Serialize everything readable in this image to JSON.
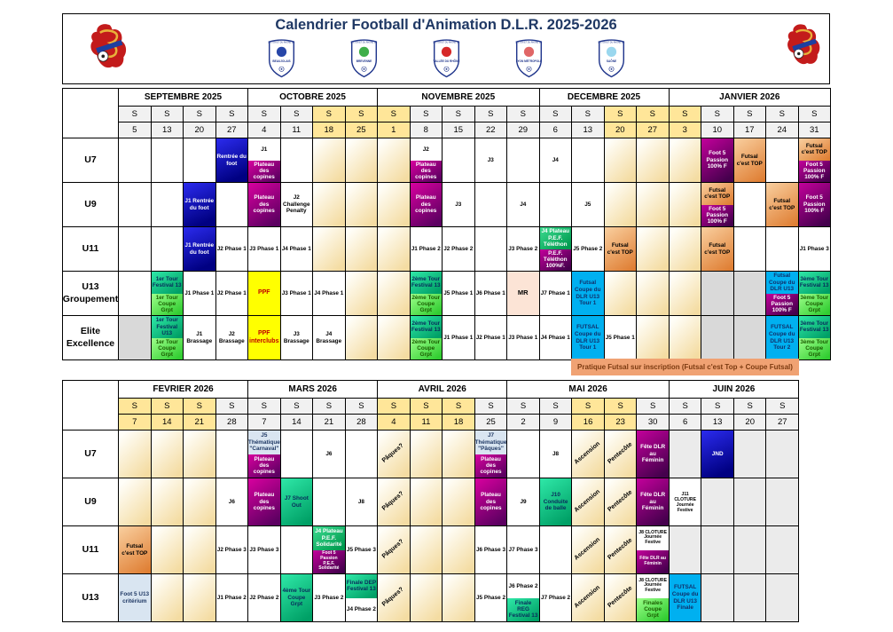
{
  "header": {
    "title": "Calendrier Football d'Animation D.L.R. 2025-2026",
    "org": "DISTRICT DE LYON ET DU RHONE DE FOOTBALL",
    "badges": [
      {
        "name": "BEAUJOLAIS",
        "accent": "#2746a8"
      },
      {
        "name": "BREVENNE",
        "accent": "#3fae49"
      },
      {
        "name": "VALLÉE DU RHÔNE",
        "accent": "#d62828"
      },
      {
        "name": "LYON MÉTROPOLE",
        "accent": "#e06666"
      },
      {
        "name": "SAÔNE",
        "accent": "#9ad7ee"
      }
    ]
  },
  "note": "Pratique Futsal sur inscription (Futsal c'est Top + Coupe Futsal)",
  "tables": [
    {
      "day": "S",
      "months": [
        [
          "SEPTEMBRE 2025",
          4
        ],
        [
          "OCTOBRE 2025",
          4
        ],
        [
          "NOVEMBRE 2025",
          5
        ],
        [
          "DECEMBRE 2025",
          4
        ],
        [
          "JANVIER 2026",
          5
        ]
      ],
      "dates": [
        "5",
        "13",
        "20",
        "27",
        "4",
        "11",
        "18",
        "25",
        "1",
        "8",
        "15",
        "22",
        "29",
        "6",
        "13",
        "20",
        "27",
        "3",
        "10",
        "17",
        "24",
        "31"
      ],
      "hl": [
        6,
        7,
        8,
        15,
        16,
        17
      ],
      "rows": [
        {
          "label": "U7",
          "cells": [
            null,
            null,
            null,
            {
              "t": "Rentrée du foot",
              "c": "blue"
            },
            {
              "sp": [
                {
                  "t": "J1",
                  "c": "wht"
                },
                {
                  "t": "Plateau des copines",
                  "c": "magenta"
                }
              ]
            },
            null,
            {
              "c": "vac"
            },
            {
              "c": "vac"
            },
            {
              "c": "vac"
            },
            {
              "sp": [
                {
                  "t": "J2",
                  "c": "wht"
                },
                {
                  "t": "Plateau des copines",
                  "c": "magenta"
                }
              ]
            },
            null,
            {
              "t": "J3",
              "c": "wht"
            },
            null,
            {
              "t": "J4",
              "c": "wht"
            },
            null,
            {
              "c": "vac"
            },
            {
              "c": "vac"
            },
            {
              "c": "vac"
            },
            {
              "t": "Foot 5 Passion 100% F",
              "c": "purple"
            },
            {
              "t": "Futsal c'est TOP",
              "c": "orange"
            },
            null,
            {
              "sp": [
                {
                  "t": "Futsal c'est TOP",
                  "c": "orange"
                },
                {
                  "t": "Foot 5 Passion 100% F",
                  "c": "purple"
                }
              ]
            }
          ]
        },
        {
          "label": "U9",
          "cells": [
            null,
            null,
            {
              "t": "J1 Rentrée du foot",
              "c": "blue"
            },
            null,
            {
              "t": "Plateau des copines",
              "c": "magenta"
            },
            {
              "t": "J2 Challenge Penalty",
              "c": "wht"
            },
            {
              "c": "vac"
            },
            {
              "c": "vac"
            },
            {
              "c": "vac"
            },
            {
              "t": "Plateau des copines",
              "c": "magenta"
            },
            {
              "t": "J3",
              "c": "wht"
            },
            null,
            {
              "t": "J4",
              "c": "wht"
            },
            null,
            {
              "t": "J5",
              "c": "wht"
            },
            {
              "c": "vac"
            },
            {
              "c": "vac"
            },
            {
              "c": "vac"
            },
            {
              "sp": [
                {
                  "t": "Futsal c'est TOP",
                  "c": "orange"
                },
                {
                  "t": "Foot 5 Passion 100% F",
                  "c": "purple"
                }
              ]
            },
            null,
            {
              "t": "Futsal c'est TOP",
              "c": "orange"
            },
            {
              "t": "Foot 5 Passion 100% F",
              "c": "purple"
            }
          ]
        },
        {
          "label": "U11",
          "cells": [
            null,
            null,
            {
              "t": "J1 Rentrée du foot",
              "c": "blue"
            },
            {
              "t": "J2 Phase 1",
              "c": "wht"
            },
            {
              "t": "J3 Phase 1",
              "c": "wht"
            },
            {
              "t": "J4 Phase 1",
              "c": "wht"
            },
            {
              "c": "vac"
            },
            {
              "c": "vac"
            },
            {
              "c": "vac"
            },
            {
              "t": "J1 Phase 2",
              "c": "wht"
            },
            {
              "t": "J2 Phase 2",
              "c": "wht"
            },
            null,
            {
              "t": "J3 Phase 2",
              "c": "wht"
            },
            {
              "sp": [
                {
                  "t": "J4 Plateau P.E.F. Téléthon",
                  "c": "greenW"
                },
                {
                  "t": "P.E.F. Téléthon 100%F.",
                  "c": "purple"
                }
              ]
            },
            {
              "t": "J5 Phase 2",
              "c": "wht"
            },
            {
              "t": "Futsal c'est TOP",
              "c": "orange"
            },
            {
              "c": "vac"
            },
            {
              "c": "vac"
            },
            {
              "t": "Futsal c'est TOP",
              "c": "orange"
            },
            null,
            null,
            {
              "t": "J1 Phase 3",
              "c": "wht"
            }
          ]
        },
        {
          "label": "U13\nGroupement",
          "cells": [
            null,
            {
              "sp": [
                {
                  "t": "1er Tour Festival 13",
                  "c": "teal"
                },
                {
                  "t": "1er Tour Coupe Grpt",
                  "c": "green"
                }
              ]
            },
            {
              "t": "J1 Phase 1",
              "c": "wht"
            },
            {
              "t": "J2 Phase 1",
              "c": "wht"
            },
            {
              "t": "PPF",
              "c": "yellow"
            },
            {
              "t": "J3 Phase 1",
              "c": "wht"
            },
            {
              "t": "J4 Phase 1",
              "c": "wht"
            },
            {
              "c": "vac"
            },
            {
              "c": "vac"
            },
            {
              "sp": [
                {
                  "t": "2ème Tour Festival 13",
                  "c": "teal"
                },
                {
                  "t": "2ème Tour Coupe Grpt",
                  "c": "green"
                }
              ]
            },
            {
              "t": "J5 Phase 1",
              "c": "wht"
            },
            {
              "t": "J6 Phase 1",
              "c": "wht"
            },
            {
              "t": "MR",
              "c": "peach"
            },
            {
              "t": "J7 Phase 1",
              "c": "wht"
            },
            {
              "t": "Futsal Coupe du DLR U13 Tour 1",
              "c": "cyan"
            },
            {
              "c": "vac"
            },
            {
              "c": "vac"
            },
            {
              "c": "vac"
            },
            {
              "c": "gray"
            },
            {
              "c": "gray"
            },
            {
              "sp": [
                {
                  "t": "Futsal Coupe du DLR U13",
                  "c": "cyan"
                },
                {
                  "t": "Foot 5 Passion 100% F",
                  "c": "purple"
                }
              ]
            },
            {
              "sp": [
                {
                  "t": "3ème Tour Festival 13",
                  "c": "teal"
                },
                {
                  "t": "3ème Tour Coupe Grpt",
                  "c": "green"
                }
              ]
            }
          ]
        },
        {
          "label": "Elite\nExcellence",
          "cells": [
            {
              "c": "gray"
            },
            {
              "sp": [
                {
                  "t": "1er Tour Festival U13",
                  "c": "teal"
                },
                {
                  "t": "1er Tour Coupe Grpt",
                  "c": "green"
                }
              ]
            },
            {
              "t": "J1 Brassage",
              "c": "wht"
            },
            {
              "t": "J2 Brassage",
              "c": "wht"
            },
            {
              "t": "PPF interclubs",
              "c": "yellow"
            },
            {
              "t": "J3 Brassage",
              "c": "wht"
            },
            {
              "t": "J4 Brassage",
              "c": "wht"
            },
            {
              "c": "vac"
            },
            {
              "c": "vac"
            },
            {
              "sp": [
                {
                  "t": "2ème Tour Festival 13",
                  "c": "teal"
                },
                {
                  "t": "2ème Tour Coupe Grpt",
                  "c": "green"
                }
              ]
            },
            {
              "t": "J1 Phase 1",
              "c": "wht"
            },
            {
              "t": "J2 Phase 1",
              "c": "wht"
            },
            {
              "t": "J3 Phase 1",
              "c": "wht"
            },
            {
              "t": "J4 Phase 1",
              "c": "wht"
            },
            {
              "t": "FUTSAL Coupe du DLR U13 Tour 1",
              "c": "cyan"
            },
            {
              "t": "J5 Phase 1",
              "c": "wht"
            },
            {
              "c": "vac"
            },
            {
              "c": "vac"
            },
            {
              "c": "gray"
            },
            {
              "c": "gray"
            },
            {
              "t": "FUTSAL Coupe du DLR U13 Tour 2",
              "c": "cyan"
            },
            {
              "sp": [
                {
                  "t": "3ème Tour Festival 13",
                  "c": "teal"
                },
                {
                  "t": "3ème Tour Coupe Grpt",
                  "c": "green"
                }
              ]
            }
          ]
        }
      ]
    },
    {
      "day": "S",
      "months": [
        [
          "FEVRIER 2026",
          4
        ],
        [
          "MARS 2026",
          4
        ],
        [
          "AVRIL 2026",
          4
        ],
        [
          "MAI 2026",
          5
        ],
        [
          "JUIN 2026",
          4
        ]
      ],
      "dates": [
        "7",
        "14",
        "21",
        "28",
        "7",
        "14",
        "21",
        "28",
        "4",
        "11",
        "18",
        "25",
        "2",
        "9",
        "16",
        "23",
        "30",
        "6",
        "13",
        "20",
        "27"
      ],
      "hl": [
        0,
        1,
        2,
        8,
        9,
        10,
        14,
        15
      ],
      "rows": [
        {
          "label": "U7",
          "cells": [
            {
              "c": "vac"
            },
            {
              "c": "vac"
            },
            {
              "c": "vac"
            },
            null,
            {
              "sp": [
                {
                  "t": "J5 Thématique \"Carnaval\"",
                  "c": "lblue"
                },
                {
                  "t": "Plateau des copines",
                  "c": "magenta"
                }
              ]
            },
            null,
            {
              "t": "J6",
              "c": "wht"
            },
            null,
            {
              "d": "Pâques?"
            },
            {
              "c": "vac"
            },
            {
              "c": "vac"
            },
            {
              "sp": [
                {
                  "t": "J7 Thématique \"Pâques\"",
                  "c": "lblue"
                },
                {
                  "t": "Plateau des copines",
                  "c": "magenta"
                }
              ]
            },
            null,
            {
              "t": "J8",
              "c": "wht"
            },
            {
              "d": "Ascension"
            },
            {
              "d": "Pentecôte"
            },
            {
              "t": "Fête DLR au Féminin",
              "c": "purple"
            },
            {
              "c": "lgray"
            },
            {
              "t": "JND",
              "c": "blue"
            },
            {
              "c": "lgray"
            },
            {
              "c": "lgray"
            }
          ]
        },
        {
          "label": "U9",
          "cells": [
            {
              "c": "vac"
            },
            {
              "c": "vac"
            },
            {
              "c": "vac"
            },
            {
              "t": "J6",
              "c": "wht"
            },
            {
              "t": "Plateau des copines",
              "c": "magenta"
            },
            {
              "t": "J7 Shoot Out",
              "c": "teal"
            },
            null,
            {
              "t": "J8",
              "c": "wht"
            },
            {
              "d": "Pâques?"
            },
            {
              "c": "vac"
            },
            {
              "c": "vac"
            },
            {
              "t": "Plateau des copines",
              "c": "magenta"
            },
            {
              "t": "J9",
              "c": "wht"
            },
            {
              "t": "J10 Conduite de balle",
              "c": "teal"
            },
            {
              "d": "Ascension"
            },
            {
              "d": "Pentecôte"
            },
            {
              "t": "Fête DLR au Féminin",
              "c": "purple"
            },
            {
              "t": "J11 CLOTURE Journée Festive",
              "c": "wht",
              "sm": 1
            },
            {
              "c": "lgray"
            },
            {
              "c": "lgray"
            },
            {
              "c": "lgray"
            }
          ]
        },
        {
          "label": "U11",
          "cells": [
            {
              "t": "Futsal c'est TOP",
              "c": "orange"
            },
            {
              "c": "vac"
            },
            {
              "c": "vac"
            },
            {
              "t": "J2 Phase 3",
              "c": "wht"
            },
            {
              "t": "J3 Phase 3",
              "c": "wht"
            },
            null,
            {
              "sp": [
                {
                  "t": "J4 Plateau P.E.F. Solidarité",
                  "c": "greenW"
                },
                {
                  "t": "Foot 5 Passion P.E.F. Solidarité",
                  "c": "purple",
                  "sm": 1
                }
              ]
            },
            {
              "t": "J5 Phase 3",
              "c": "wht"
            },
            {
              "d": "Pâques?"
            },
            {
              "c": "vac"
            },
            {
              "c": "vac"
            },
            {
              "t": "J6 Phase 3",
              "c": "wht"
            },
            {
              "t": "J7 Phase 3",
              "c": "wht"
            },
            null,
            {
              "d": "Ascension"
            },
            {
              "d": "Pentecôte"
            },
            {
              "sp": [
                {
                  "t": "J8 CLOTURE Journée Festive",
                  "c": "wht",
                  "sm": 1
                },
                {
                  "t": "Fête DLR au Féminin",
                  "c": "purple",
                  "sm": 1
                }
              ]
            },
            {
              "c": "lgray"
            },
            {
              "c": "lgray"
            },
            {
              "c": "lgray"
            },
            {
              "c": "lgray"
            }
          ]
        },
        {
          "label": "U13",
          "cells": [
            {
              "t": "Foot 5 U13 critérium",
              "c": "lblue"
            },
            {
              "c": "vac"
            },
            {
              "c": "vac"
            },
            {
              "t": "J1 Phase 2",
              "c": "wht"
            },
            {
              "t": "J2 Phase 2",
              "c": "wht"
            },
            {
              "t": "4ème Tour Coupe Grpt",
              "c": "teal"
            },
            {
              "t": "J3 Phase 2",
              "c": "wht"
            },
            {
              "sp": [
                {
                  "t": "Finale DEP Festival 13",
                  "c": "teal"
                },
                {
                  "t": "J4 Phase 2",
                  "c": "wht"
                }
              ]
            },
            {
              "d": "Pâques?"
            },
            {
              "c": "vac"
            },
            {
              "c": "vac"
            },
            {
              "t": "J5 Phase 2",
              "c": "wht"
            },
            {
              "sp": [
                {
                  "t": "J6 Phase 2",
                  "c": "wht"
                },
                {
                  "t": "Finale REG Festival 13",
                  "c": "teal"
                }
              ]
            },
            {
              "t": "J7 Phase 2",
              "c": "wht"
            },
            {
              "d": "Ascension"
            },
            {
              "d": "Pentecôte"
            },
            {
              "sp": [
                {
                  "t": "J8 CLOTURE Journée Festive",
                  "c": "wht",
                  "sm": 1
                },
                {
                  "t": "Finales Coupe Grpt",
                  "c": "green"
                }
              ]
            },
            {
              "t": "FUTSAL Coupe du DLR U13 Finale",
              "c": "cyan"
            },
            {
              "c": "lgray"
            },
            {
              "c": "lgray"
            },
            {
              "c": "lgray"
            }
          ]
        }
      ]
    }
  ]
}
